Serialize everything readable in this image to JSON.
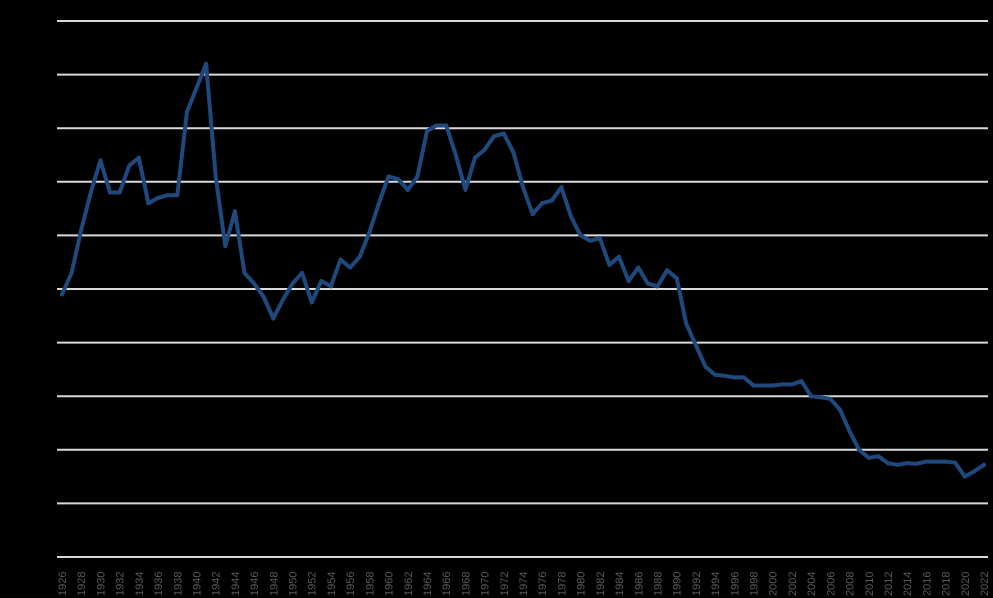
{
  "chart_data": {
    "type": "line",
    "title": "",
    "xlabel": "",
    "ylabel": "",
    "grid": true,
    "colors": {
      "background": "#000000",
      "line": "#1f497d",
      "grid": "#d9d9d9",
      "tick_label": "#595959"
    },
    "ylim": [
      0,
      10
    ],
    "x": [
      1926,
      1927,
      1928,
      1929,
      1930,
      1931,
      1932,
      1933,
      1934,
      1935,
      1936,
      1937,
      1938,
      1939,
      1940,
      1941,
      1942,
      1943,
      1944,
      1945,
      1946,
      1947,
      1948,
      1949,
      1950,
      1951,
      1952,
      1953,
      1954,
      1955,
      1956,
      1957,
      1958,
      1959,
      1960,
      1961,
      1962,
      1963,
      1964,
      1965,
      1966,
      1967,
      1968,
      1969,
      1970,
      1971,
      1972,
      1973,
      1974,
      1975,
      1976,
      1977,
      1978,
      1979,
      1980,
      1981,
      1982,
      1983,
      1984,
      1985,
      1986,
      1987,
      1988,
      1989,
      1990,
      1991,
      1992,
      1993,
      1994,
      1995,
      1996,
      1997,
      1998,
      1999,
      2000,
      2001,
      2002,
      2003,
      2004,
      2005,
      2006,
      2007,
      2008,
      2009,
      2010,
      2011,
      2012,
      2013,
      2014,
      2015,
      2016,
      2017,
      2018,
      2019,
      2020,
      2021,
      2022
    ],
    "series": [
      {
        "values": [
          4.9,
          5.3,
          6.1,
          6.8,
          7.4,
          6.8,
          6.8,
          7.3,
          7.45,
          6.6,
          6.7,
          6.75,
          6.75,
          8.3,
          8.75,
          9.2,
          7.1,
          5.8,
          6.45,
          5.3,
          5.1,
          4.85,
          4.45,
          4.8,
          5.1,
          5.3,
          4.75,
          5.15,
          5.05,
          5.55,
          5.4,
          5.6,
          6.05,
          6.6,
          7.1,
          7.05,
          6.85,
          7.1,
          7.95,
          8.05,
          8.05,
          7.5,
          6.85,
          7.45,
          7.6,
          7.85,
          7.9,
          7.55,
          6.9,
          6.4,
          6.6,
          6.65,
          6.9,
          6.35,
          6.0,
          5.9,
          5.95,
          5.45,
          5.6,
          5.15,
          5.4,
          5.1,
          5.05,
          5.35,
          5.2,
          4.35,
          3.95,
          3.55,
          3.4,
          3.38,
          3.35,
          3.35,
          3.2,
          3.2,
          3.2,
          3.22,
          3.22,
          3.28,
          3.0,
          2.98,
          2.95,
          2.75,
          2.35,
          2.0,
          1.85,
          1.88,
          1.75,
          1.72,
          1.75,
          1.74,
          1.78,
          1.78,
          1.78,
          1.76,
          1.5,
          1.6,
          1.72
        ]
      }
    ]
  },
  "x_tick_labels": [
    "1926",
    "1928",
    "1930",
    "1932",
    "1934",
    "1936",
    "1938",
    "1940",
    "1942",
    "1944",
    "1946",
    "1948",
    "1950",
    "1952",
    "1954",
    "1956",
    "1958",
    "1960",
    "1962",
    "1964",
    "1966",
    "1968",
    "1970",
    "1972",
    "1974",
    "1976",
    "1978",
    "1980",
    "1982",
    "1984",
    "1986",
    "1988",
    "1990",
    "1992",
    "1994",
    "1996",
    "1998",
    "2000",
    "2002",
    "2004",
    "2006",
    "2008",
    "2010",
    "2012",
    "2014",
    "2016",
    "2018",
    "2020",
    "2022"
  ]
}
